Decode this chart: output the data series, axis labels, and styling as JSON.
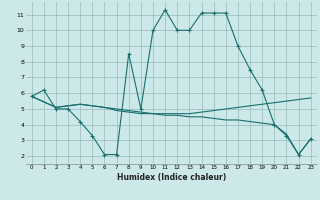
{
  "xlabel": "Humidex (Indice chaleur)",
  "background_color": "#cce8e8",
  "grid_color": "#99bbbb",
  "line_color": "#1a6e6e",
  "x_ticks": [
    0,
    1,
    2,
    3,
    4,
    5,
    6,
    7,
    8,
    9,
    10,
    11,
    12,
    13,
    14,
    15,
    16,
    17,
    18,
    19,
    20,
    21,
    22,
    23
  ],
  "y_ticks": [
    2,
    3,
    4,
    5,
    6,
    7,
    8,
    9,
    10,
    11
  ],
  "ylim": [
    1.5,
    11.8
  ],
  "xlim": [
    -0.5,
    23.5
  ],
  "series": [
    {
      "x": [
        0,
        1,
        2,
        3,
        4,
        5,
        6,
        7,
        8,
        9,
        10,
        11,
        12,
        13,
        14,
        15,
        16,
        17,
        18,
        19,
        20,
        21,
        22,
        23
      ],
      "y": [
        5.8,
        6.2,
        5.0,
        5.0,
        4.2,
        3.3,
        2.1,
        2.1,
        8.5,
        5.0,
        10.0,
        11.3,
        10.0,
        10.0,
        11.1,
        11.1,
        11.1,
        9.0,
        7.5,
        6.2,
        4.0,
        3.3,
        2.1,
        3.1
      ],
      "has_markers": true
    },
    {
      "x": [
        0,
        2,
        3,
        4,
        5,
        6,
        7,
        8,
        9,
        10,
        11,
        12,
        13,
        14,
        15,
        16,
        17,
        18,
        19,
        20,
        21,
        22,
        23
      ],
      "y": [
        5.8,
        5.1,
        5.2,
        5.3,
        5.2,
        5.1,
        4.9,
        4.8,
        4.7,
        4.7,
        4.7,
        4.7,
        4.7,
        4.8,
        4.9,
        5.0,
        5.1,
        5.2,
        5.3,
        5.4,
        5.5,
        5.6,
        5.7
      ],
      "has_markers": false
    },
    {
      "x": [
        0,
        2,
        3,
        4,
        5,
        6,
        7,
        8,
        9,
        10,
        11,
        12,
        13,
        14,
        15,
        16,
        17,
        18,
        19,
        20,
        21,
        22,
        23
      ],
      "y": [
        5.8,
        5.1,
        5.2,
        5.3,
        5.2,
        5.1,
        5.0,
        4.9,
        4.8,
        4.7,
        4.6,
        4.6,
        4.5,
        4.5,
        4.4,
        4.3,
        4.3,
        4.2,
        4.1,
        4.0,
        3.4,
        2.1,
        3.1
      ],
      "has_markers": false
    }
  ]
}
